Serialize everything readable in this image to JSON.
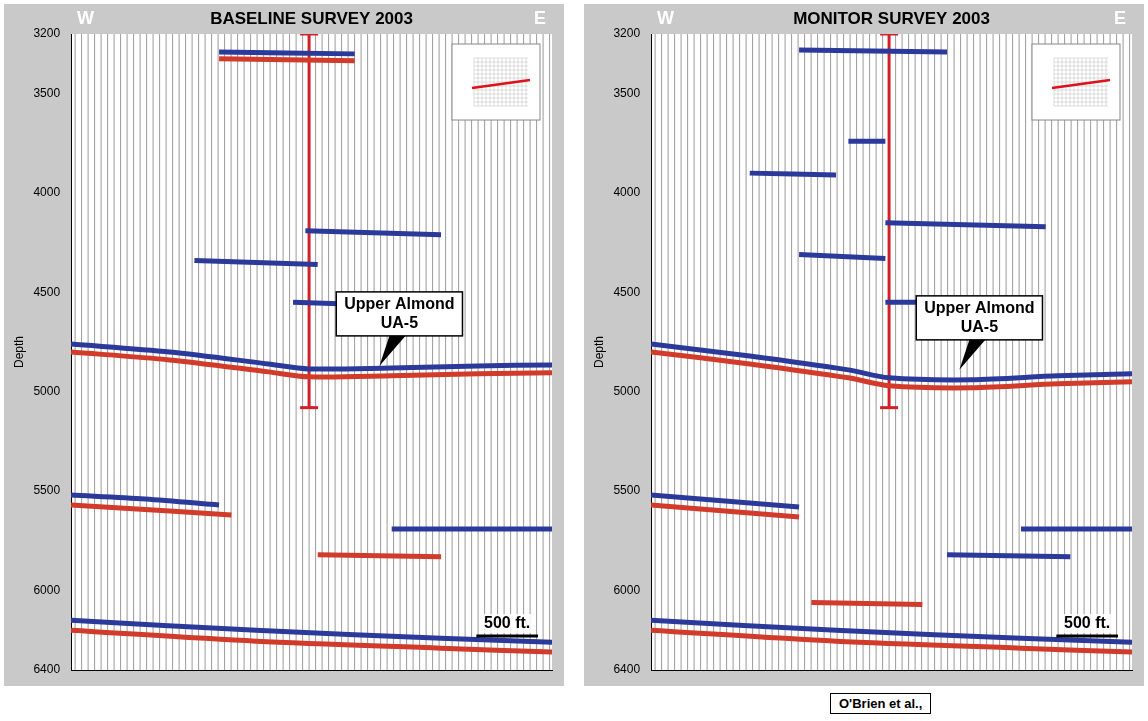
{
  "chart_data": [
    {
      "type": "line",
      "title": "BASELINE SURVEY 2003",
      "direction_labels": [
        "W",
        "E"
      ],
      "ylabel": "Depth",
      "xlim": [
        0,
        3900
      ],
      "ylim": [
        3200,
        6400
      ],
      "yticks": [
        3200,
        3500,
        4000,
        4500,
        5000,
        5500,
        6000,
        6400
      ],
      "tick_labels": "y",
      "grid": false,
      "well": {
        "x": 1930,
        "bottom": 5080,
        "color": "#d0202a"
      },
      "annotations": [
        {
          "text": "Upper Almond UA-5",
          "x": 2500,
          "y": 4890
        }
      ],
      "scale_bar": {
        "label": "500 ft.",
        "length": 500
      },
      "series": [
        {
          "color": "#2b3a9a",
          "x": [
            0,
            800,
            1600,
            1930,
            2600,
            3300,
            3900
          ],
          "values": [
            4760,
            4800,
            4860,
            4885,
            4880,
            4870,
            4865
          ]
        },
        {
          "color": "#d23a2a",
          "x": [
            0,
            800,
            1600,
            1930,
            2600,
            3300,
            3900
          ],
          "values": [
            4800,
            4840,
            4900,
            4925,
            4920,
            4910,
            4905
          ]
        },
        {
          "color": "#2b3a9a",
          "x": [
            0,
            600,
            1200
          ],
          "values": [
            5520,
            5540,
            5570
          ]
        },
        {
          "color": "#d23a2a",
          "x": [
            0,
            800,
            1300
          ],
          "values": [
            5570,
            5600,
            5620
          ]
        },
        {
          "color": "#2b3a9a",
          "x": [
            0,
            1500,
            3000,
            3900
          ],
          "values": [
            6150,
            6200,
            6240,
            6260
          ]
        },
        {
          "color": "#d23a2a",
          "x": [
            0,
            1500,
            3000,
            3900
          ],
          "values": [
            6200,
            6255,
            6290,
            6310
          ]
        },
        {
          "color": "#2b3a9a",
          "x": [
            1200,
            2300
          ],
          "values": [
            3290,
            3300
          ]
        },
        {
          "color": "#d23a2a",
          "x": [
            1200,
            2300
          ],
          "values": [
            3325,
            3335
          ]
        },
        {
          "color": "#2b3a9a",
          "x": [
            1900,
            3000
          ],
          "values": [
            4190,
            4210
          ]
        },
        {
          "color": "#2b3a9a",
          "x": [
            1000,
            2000
          ],
          "values": [
            4340,
            4360
          ]
        },
        {
          "color": "#2b3a9a",
          "x": [
            1800,
            2300
          ],
          "values": [
            4550,
            4560
          ]
        },
        {
          "color": "#2b3a9a",
          "x": [
            2600,
            3900
          ],
          "values": [
            5690,
            5690
          ]
        },
        {
          "color": "#d23a2a",
          "x": [
            2000,
            3000
          ],
          "values": [
            5820,
            5830
          ]
        }
      ]
    },
    {
      "type": "line",
      "title": "MONITOR SURVEY 2003",
      "direction_labels": [
        "W",
        "E"
      ],
      "ylabel": "Depth",
      "xlim": [
        0,
        3900
      ],
      "ylim": [
        3200,
        6400
      ],
      "yticks": [
        3200,
        3500,
        4000,
        4500,
        5000,
        5500,
        6000,
        6400
      ],
      "tick_labels": "y",
      "grid": false,
      "well": {
        "x": 1930,
        "bottom": 5080,
        "color": "#d0202a"
      },
      "annotations": [
        {
          "text": "Upper Almond UA-5",
          "x": 2500,
          "y": 4910
        }
      ],
      "scale_bar": {
        "label": "500 ft.",
        "length": 500
      },
      "series": [
        {
          "color": "#2b3a9a",
          "x": [
            0,
            800,
            1600,
            1930,
            2600,
            3300,
            3900
          ],
          "values": [
            4760,
            4820,
            4890,
            4930,
            4940,
            4920,
            4910
          ]
        },
        {
          "color": "#d23a2a",
          "x": [
            0,
            800,
            1600,
            1930,
            2600,
            3300,
            3900
          ],
          "values": [
            4800,
            4860,
            4930,
            4970,
            4980,
            4960,
            4950
          ]
        },
        {
          "color": "#2b3a9a",
          "x": [
            1200,
            2400
          ],
          "values": [
            3280,
            3290
          ]
        },
        {
          "color": "#2b3a9a",
          "x": [
            1600,
            1900
          ],
          "values": [
            3740,
            3740
          ]
        },
        {
          "color": "#2b3a9a",
          "x": [
            800,
            1500
          ],
          "values": [
            3900,
            3910
          ]
        },
        {
          "color": "#2b3a9a",
          "x": [
            1900,
            3200
          ],
          "values": [
            4150,
            4170
          ]
        },
        {
          "color": "#2b3a9a",
          "x": [
            1200,
            1900
          ],
          "values": [
            4310,
            4330
          ]
        },
        {
          "color": "#2b3a9a",
          "x": [
            1900,
            3000
          ],
          "values": [
            4550,
            4550
          ]
        },
        {
          "color": "#2b3a9a",
          "x": [
            0,
            1200
          ],
          "values": [
            5520,
            5580
          ]
        },
        {
          "color": "#d23a2a",
          "x": [
            0,
            1200
          ],
          "values": [
            5570,
            5630
          ]
        },
        {
          "color": "#2b3a9a",
          "x": [
            3000,
            3900
          ],
          "values": [
            5690,
            5690
          ]
        },
        {
          "color": "#2b3a9a",
          "x": [
            2400,
            3400
          ],
          "values": [
            5820,
            5830
          ]
        },
        {
          "color": "#d23a2a",
          "x": [
            1300,
            2200
          ],
          "values": [
            6060,
            6070
          ]
        },
        {
          "color": "#2b3a9a",
          "x": [
            0,
            1500,
            3000,
            3900
          ],
          "values": [
            6150,
            6200,
            6240,
            6260
          ]
        },
        {
          "color": "#d23a2a",
          "x": [
            0,
            1500,
            3000,
            3900
          ],
          "values": [
            6200,
            6255,
            6290,
            6310
          ]
        }
      ]
    }
  ],
  "source": "O'Brien et al.,"
}
